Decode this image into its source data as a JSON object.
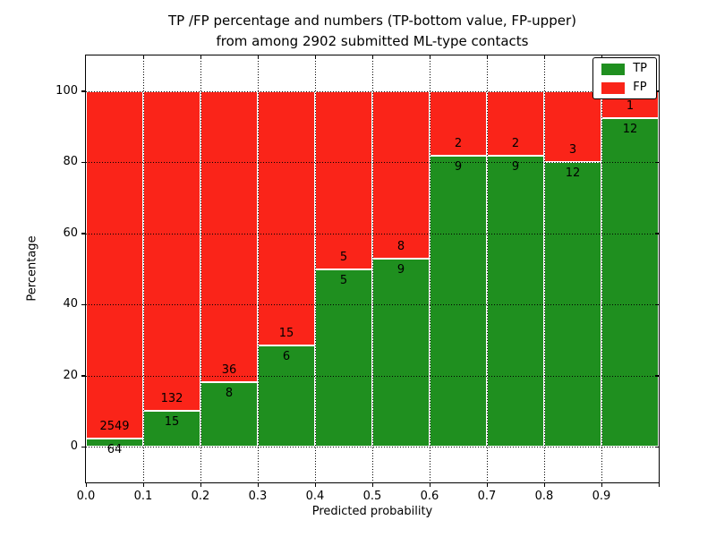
{
  "title": {
    "line1": "TP /FP percentage and numbers (TP-bottom value, FP-upper)",
    "line2": "from among 2902 submitted ML-type contacts"
  },
  "axes": {
    "xlabel": "Predicted probability",
    "ylabel": "Percentage",
    "xtick_labels": [
      "0.0",
      "0.1",
      "0.2",
      "0.3",
      "0.4",
      "0.5",
      "0.6",
      "0.7",
      "0.8",
      "0.9"
    ],
    "ytick_values": [
      0,
      20,
      40,
      60,
      80,
      100
    ],
    "xlim": [
      0.0,
      1.0
    ],
    "ylim": [
      -10,
      110
    ],
    "grid_style": "dotted black, drawn over bars"
  },
  "legend": {
    "position": "upper right",
    "items": [
      {
        "label": "TP",
        "color": "#1f8f1f"
      },
      {
        "label": "FP",
        "color": "#fa2419"
      }
    ]
  },
  "chart_data": {
    "type": "bar",
    "stacked": true,
    "normalization": "each bin scaled to 100 percent, TP on bottom, FP on top",
    "title": "TP /FP percentage and numbers (TP-bottom value, FP-upper) from among 2902 submitted ML-type contacts",
    "xlabel": "Predicted probability",
    "ylabel": "Percentage",
    "total_contacts": 2902,
    "bin_edges": [
      0.0,
      0.1,
      0.2,
      0.3,
      0.4,
      0.5,
      0.6,
      0.7,
      0.8,
      0.9,
      1.0
    ],
    "categories": [
      "0.0-0.1",
      "0.1-0.2",
      "0.2-0.3",
      "0.3-0.4",
      "0.4-0.5",
      "0.5-0.6",
      "0.6-0.7",
      "0.7-0.8",
      "0.8-0.9",
      "0.9-1.0"
    ],
    "series": [
      {
        "name": "TP",
        "color": "#1f8f1f",
        "counts": [
          64,
          15,
          8,
          6,
          5,
          9,
          9,
          9,
          12,
          12
        ]
      },
      {
        "name": "FP",
        "color": "#fa2419",
        "counts": [
          2549,
          132,
          36,
          15,
          5,
          8,
          2,
          2,
          3,
          1
        ]
      }
    ],
    "tp_percent": [
      2.4,
      10.2,
      18.2,
      28.6,
      50.0,
      52.9,
      81.8,
      81.8,
      80.0,
      92.3
    ],
    "ylim": [
      -10,
      110
    ],
    "grid": true,
    "legend_position": "upper right"
  }
}
